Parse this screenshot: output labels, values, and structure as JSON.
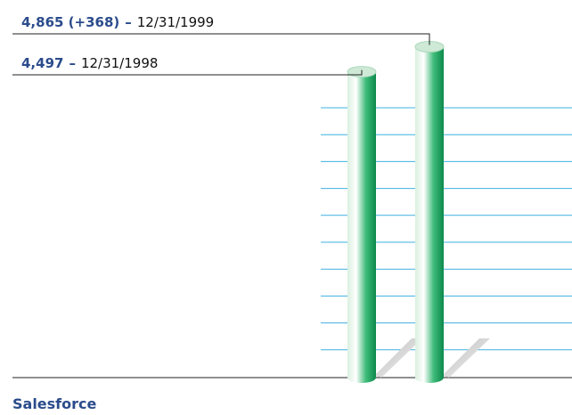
{
  "chart_data": {
    "type": "cylinder",
    "title": "Salesforce",
    "categories": [
      "12/31/1998",
      "12/31/1999"
    ],
    "values": [
      4497,
      4865
    ],
    "value_labels": [
      "4,497",
      "4,865 (+368)"
    ],
    "separator": "–",
    "ylim": [
      0,
      5500
    ],
    "color": "#1fa060"
  }
}
